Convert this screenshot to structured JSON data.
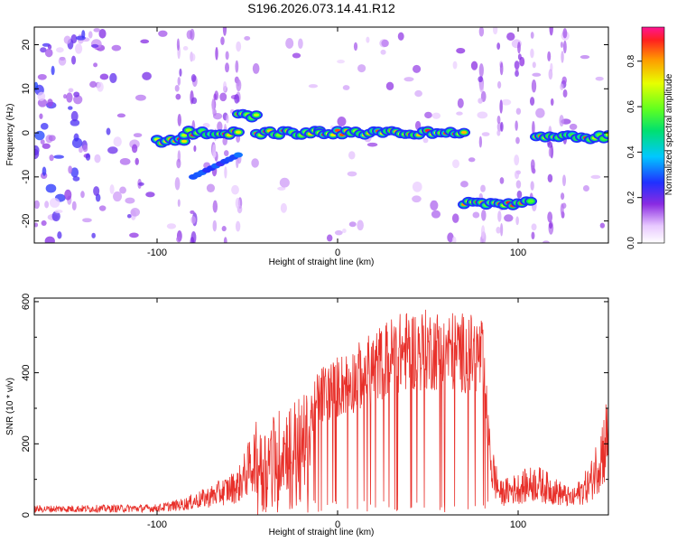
{
  "title": "S196.2026.073.14.41.R12",
  "chart_data": [
    {
      "type": "heatmap",
      "xlabel": "Height of straight line (km)",
      "ylabel": "Frequency (Hz)",
      "xlim": [
        -168,
        150
      ],
      "ylim": [
        -25,
        24
      ],
      "xticks": [
        -100,
        0,
        100
      ],
      "yticks": [
        20,
        10,
        0,
        -10,
        -20
      ],
      "colorbar": {
        "label": "Normalized spectral amplitude",
        "range": [
          0,
          0.95
        ],
        "ticks": [
          0.0,
          0.2,
          0.4,
          0.6,
          0.8
        ]
      },
      "ridge_segments": [
        {
          "x_start": -100,
          "x_end": -85,
          "freq_hz": -2
        },
        {
          "x_start": -85,
          "x_end": -55,
          "freq_hz": 0
        },
        {
          "x_start": -55,
          "x_end": -45,
          "freq_hz": 4
        },
        {
          "x_start": -45,
          "x_end": -10,
          "freq_hz": 0
        },
        {
          "x_start": -10,
          "x_end": 70,
          "freq_hz": 0
        },
        {
          "x_start": 70,
          "x_end": 107,
          "freq_hz": -16
        },
        {
          "x_start": 110,
          "x_end": 150,
          "freq_hz": -1
        }
      ],
      "branch": {
        "x_start": -80,
        "x_end": -55,
        "freq_start_hz": -10,
        "freq_end_hz": -5
      }
    },
    {
      "type": "line",
      "xlabel": "Height of straight line (km)",
      "ylabel": "SNR (10 * v/v)",
      "xlim": [
        -168,
        150
      ],
      "ylim": [
        0,
        610
      ],
      "xticks": [
        -100,
        0,
        100
      ],
      "yticks": [
        0,
        200,
        400,
        600
      ],
      "color": "#e8302a",
      "envelope_x": [
        -168,
        -100,
        -85,
        -70,
        -55,
        -45,
        -35,
        -25,
        -15,
        -10,
        0,
        10,
        20,
        30,
        40,
        50,
        60,
        70,
        80,
        85,
        90,
        100,
        110,
        120,
        130,
        140,
        150
      ],
      "envelope_y": [
        22,
        25,
        40,
        70,
        110,
        220,
        290,
        330,
        350,
        420,
        450,
        480,
        520,
        560,
        580,
        580,
        580,
        570,
        560,
        180,
        80,
        100,
        120,
        90,
        60,
        120,
        300
      ]
    }
  ]
}
